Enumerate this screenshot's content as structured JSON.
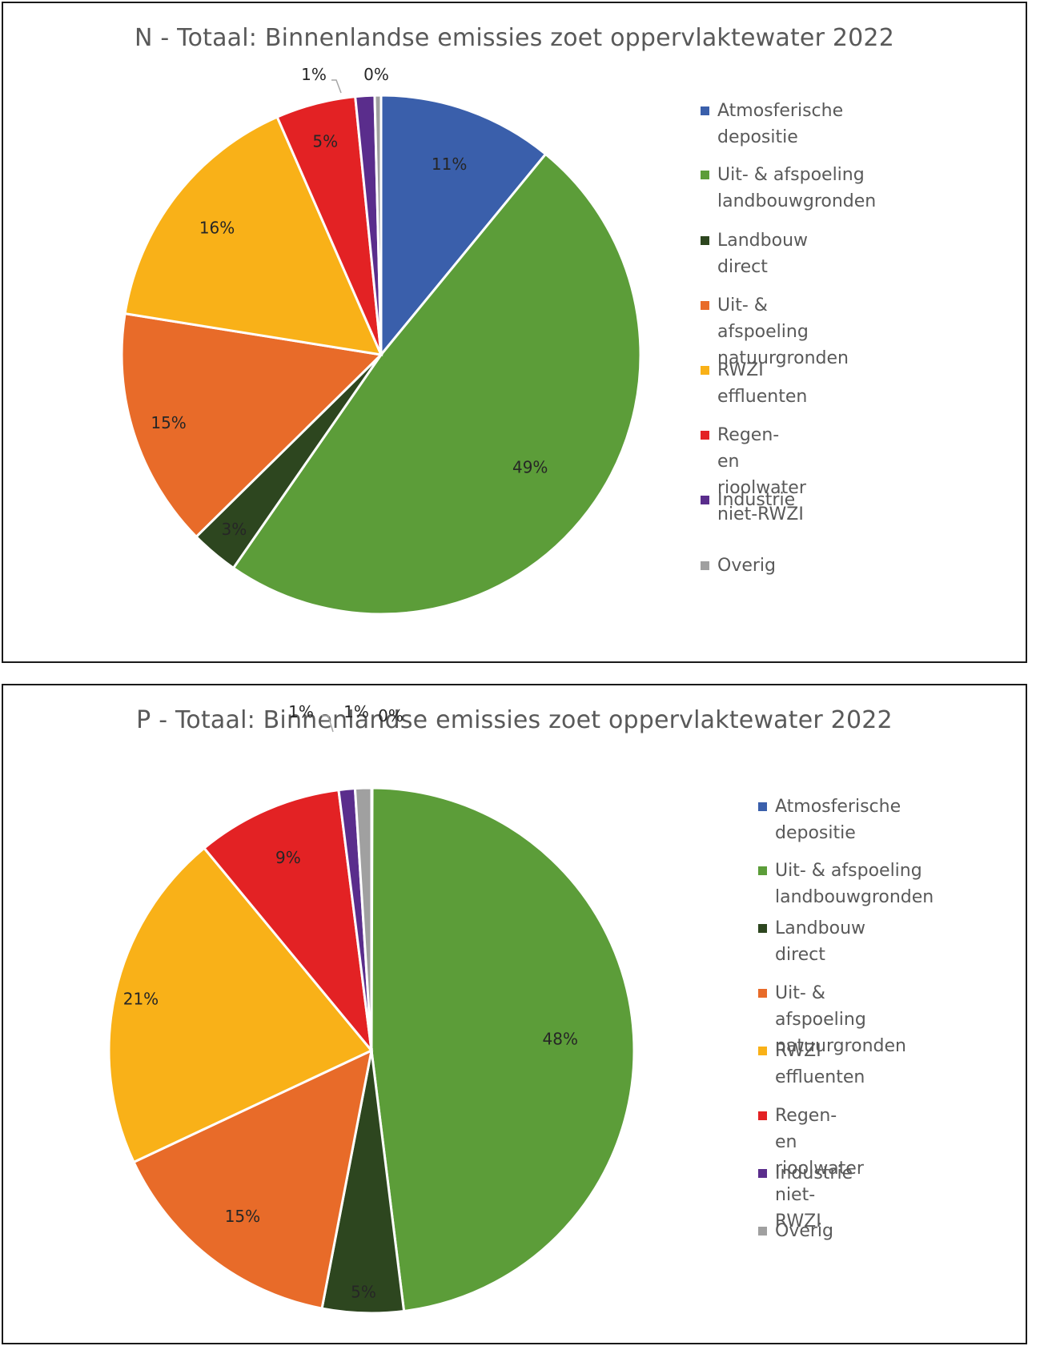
{
  "chart_data": [
    {
      "type": "pie",
      "title": "N - Totaal: Binnenlandse emissies zoet oppervlaktewater 2022",
      "legend_position": "right",
      "start_angle": "12 o'clock, clockwise",
      "slices": [
        {
          "name": "Atmosferische depositie",
          "legend_label": "Atmosferische depositie",
          "value": 11,
          "label": "11%",
          "color": "#3A5FAB"
        },
        {
          "name": "Uit- & afspoeling landbouwgronden",
          "legend_label": "Uit- & afspoeling\nlandbouwgronden",
          "value": 49,
          "label": "49%",
          "color": "#5C9D39"
        },
        {
          "name": "Landbouw direct",
          "legend_label": "Landbouw direct",
          "value": 3,
          "label": "3%",
          "color": "#2D461F"
        },
        {
          "name": "Uit- & afspoeling natuurgronden",
          "legend_label": "Uit- & afspoeling natuurgronden",
          "value": 15,
          "label": "15%",
          "color": "#E86B29"
        },
        {
          "name": "RWZI effluenten",
          "legend_label": "RWZI effluenten",
          "value": 16,
          "label": "16%",
          "color": "#F9B118"
        },
        {
          "name": "Regen- en rioolwater niet-RWZI",
          "legend_label": "Regen- en rioolwater niet-RWZI",
          "value": 5,
          "label": "5%",
          "color": "#E32224"
        },
        {
          "name": "Industrie",
          "legend_label": "Industrie",
          "value": 1.2,
          "label": "1%",
          "color": "#5A2D8C"
        },
        {
          "name": "Overig",
          "legend_label": "Overig",
          "value": 0.4,
          "label": "0%",
          "color": "#A0A0A0"
        }
      ]
    },
    {
      "type": "pie",
      "title": "P - Totaal: Binnenlandse emissies zoet oppervlaktewater 2022",
      "legend_position": "right",
      "start_angle": "12 o'clock, clockwise",
      "slices": [
        {
          "name": "Atmosferische depositie",
          "legend_label": "Atmosferische depositie",
          "value": 0.05,
          "label": "0%",
          "color": "#3A5FAB"
        },
        {
          "name": "Uit- & afspoeling landbouwgronden",
          "legend_label": "Uit- & afspoeling\nlandbouwgronden",
          "value": 48,
          "label": "48%",
          "color": "#5C9D39"
        },
        {
          "name": "Landbouw direct",
          "legend_label": "Landbouw direct",
          "value": 5,
          "label": "5%",
          "color": "#2D461F"
        },
        {
          "name": "Uit- & afspoeling natuurgronden",
          "legend_label": "Uit- & afspoeling\nnatuurgronden",
          "value": 15,
          "label": "15%",
          "color": "#E86B29"
        },
        {
          "name": "RWZI effluenten",
          "legend_label": "RWZI effluenten",
          "value": 21,
          "label": "21%",
          "color": "#F9B118"
        },
        {
          "name": "Regen- en rioolwater niet-RWZI",
          "legend_label": "Regen- en rioolwater niet-\nRWZI",
          "value": 9,
          "label": "9%",
          "color": "#E32224"
        },
        {
          "name": "Industrie",
          "legend_label": "Industrie",
          "value": 1,
          "label": "1%",
          "color": "#5A2D8C"
        },
        {
          "name": "Overig",
          "legend_label": "Overig",
          "value": 1,
          "label": "1%",
          "color": "#A0A0A0"
        }
      ]
    }
  ]
}
